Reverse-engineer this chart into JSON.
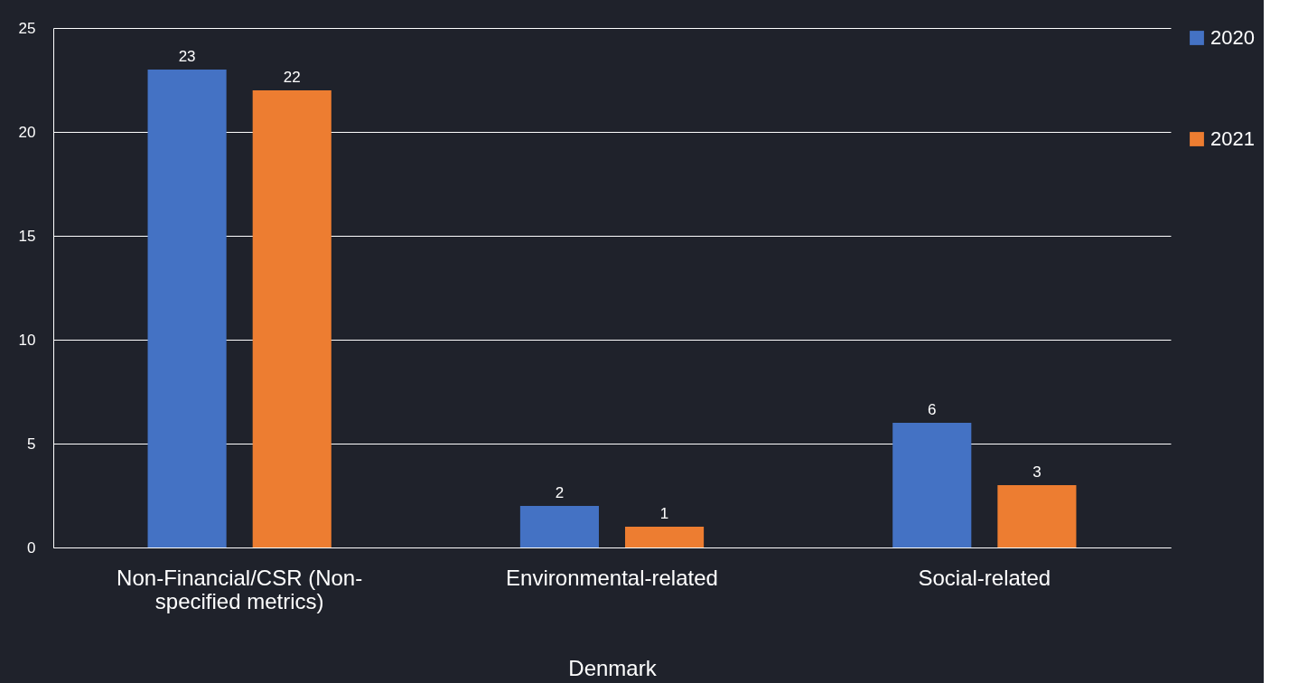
{
  "chart_data": {
    "type": "bar",
    "categories": [
      "Non-Financial/CSR (Non-specified metrics)",
      "Environmental-related",
      "Social-related"
    ],
    "xlabel": "Denmark",
    "series": [
      {
        "name": "2020",
        "color": "#4472c4",
        "values": [
          23,
          2,
          6
        ]
      },
      {
        "name": "2021",
        "color": "#ed7d31",
        "values": [
          22,
          1,
          3
        ]
      }
    ],
    "ylim": [
      0,
      25
    ],
    "yticks": [
      0,
      5,
      10,
      15,
      20,
      25
    ],
    "grid": "y",
    "legend": "right",
    "data_labels": true
  }
}
